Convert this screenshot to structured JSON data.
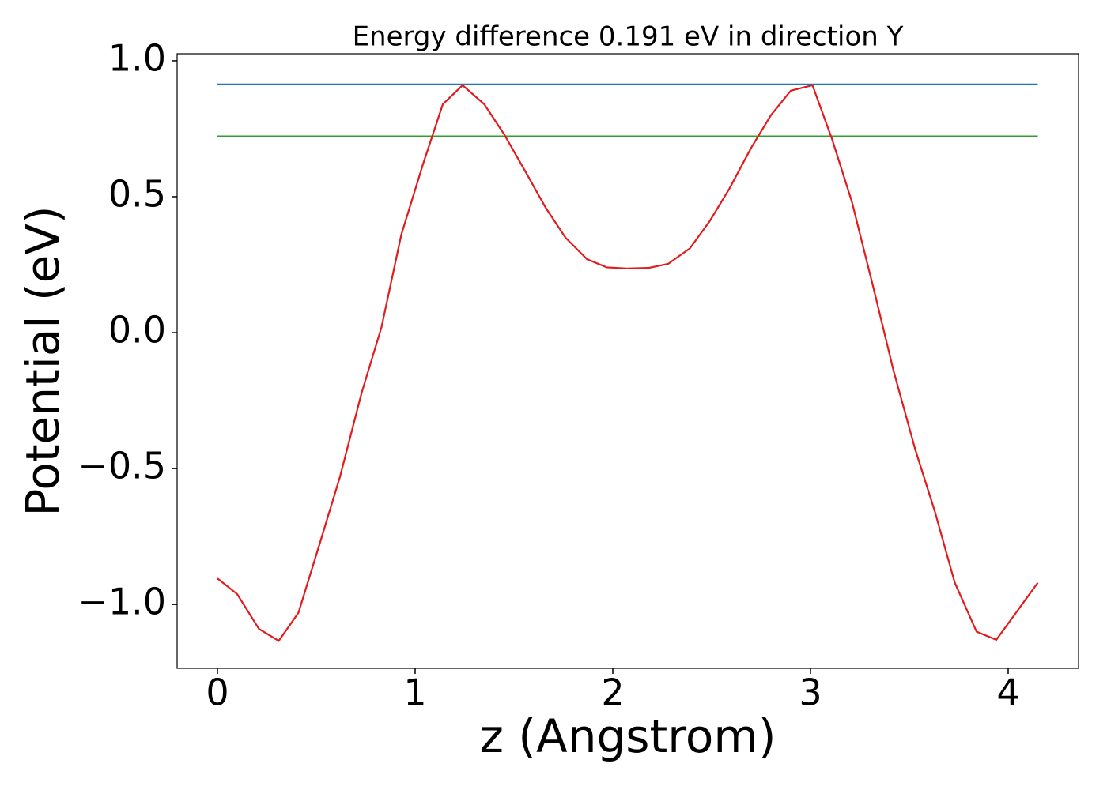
{
  "chart_data": {
    "type": "line",
    "title": "Energy difference 0.191 eV in direction Y",
    "xlabel": "z (Angstrom)",
    "ylabel": "Potential (eV)",
    "xlim": [
      -0.204,
      4.356
    ],
    "ylim": [
      -1.235,
      1.026
    ],
    "xticks": [
      0,
      1,
      2,
      3,
      4
    ],
    "yticks": [
      {
        "value": -1.0,
        "label": "−1.0"
      },
      {
        "value": -0.5,
        "label": "−0.5"
      },
      {
        "value": 0.0,
        "label": "0.0"
      },
      0.5,
      {
        "value": 1.0,
        "label": "1.0"
      }
    ],
    "grid": false,
    "series": [
      {
        "color": "#e31a1c",
        "x": [
          0,
          0.1,
          0.21,
          0.31,
          0.41,
          0.52,
          0.62,
          0.73,
          0.83,
          0.93,
          1.04,
          1.14,
          1.24,
          1.35,
          1.45,
          1.56,
          1.66,
          1.76,
          1.87,
          1.97,
          2.07,
          2.18,
          2.28,
          2.39,
          2.49,
          2.59,
          2.7,
          2.8,
          2.9,
          3.01,
          3.11,
          3.21,
          3.32,
          3.42,
          3.53,
          3.63,
          3.73,
          3.84,
          3.94,
          4.04,
          4.15
        ],
        "values": [
          -0.904,
          -0.962,
          -1.09,
          -1.134,
          -1.03,
          -0.77,
          -0.53,
          -0.22,
          0.02,
          0.36,
          0.62,
          0.84,
          0.91,
          0.84,
          0.73,
          0.59,
          0.46,
          0.35,
          0.27,
          0.24,
          0.236,
          0.238,
          0.253,
          0.31,
          0.41,
          0.53,
          0.68,
          0.8,
          0.89,
          0.91,
          0.71,
          0.48,
          0.16,
          -0.14,
          -0.43,
          -0.66,
          -0.92,
          -1.1,
          -1.13,
          -1.03,
          -0.92
        ]
      },
      {
        "color": "#1f77b4",
        "x": [
          0,
          4.15
        ],
        "values": [
          0.913,
          0.913
        ]
      },
      {
        "color": "#2ca02c",
        "x": [
          0,
          4.15
        ],
        "values": [
          0.722,
          0.722
        ]
      }
    ]
  }
}
